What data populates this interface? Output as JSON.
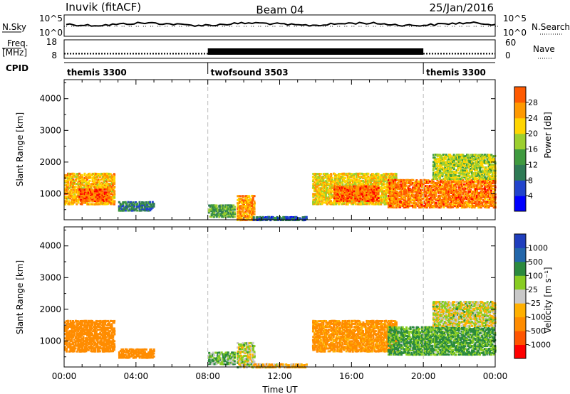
{
  "header": {
    "station": "Inuvik (fitACF)",
    "beam": "Beam 04",
    "date": "25/Jan/2016"
  },
  "nsky_panel": {
    "left_label": "N.Sky",
    "right_label": "N.Search",
    "left_ticks": [
      "10^5",
      "10^0"
    ],
    "right_ticks": [
      "10^5",
      "10^0"
    ]
  },
  "freq_panel": {
    "left_label_1": "Freq.",
    "left_label_2": "[MHz]",
    "right_label": "Nave",
    "left_ticks": [
      "18",
      "8"
    ],
    "right_ticks": [
      "60",
      "0"
    ],
    "freq_mhz_min": 8,
    "freq_mhz_max": 18,
    "freq_mhz_value": 10.5,
    "nave_min": 0,
    "nave_max": 60
  },
  "cpid": {
    "label": "CPID",
    "segments": [
      {
        "name": "themis 3300",
        "start": 0,
        "end": 8
      },
      {
        "name": "twofsound 3503",
        "start": 8,
        "end": 20
      },
      {
        "name": "themis 3300",
        "start": 20,
        "end": 24
      }
    ]
  },
  "colors": {
    "power_scale": [
      "#0000ff",
      "#2244cc",
      "#2e7a55",
      "#3f9a3f",
      "#9ccf2e",
      "#ffd500",
      "#ff9900",
      "#ff5a00",
      "#ff0000"
    ],
    "velocity_scale": [
      "#ff0000",
      "#ff5500",
      "#ff8c00",
      "#ffb000",
      "#c8c8c8",
      "#88cc22",
      "#2b8a3e",
      "#2266aa",
      "#1f3ebd"
    ]
  },
  "chart_data": [
    {
      "type": "heatmap",
      "name": "power",
      "xlabel": "",
      "ylabel": "Slant Range [km]",
      "x_range_hours": [
        0,
        24
      ],
      "ylim": [
        180,
        4600
      ],
      "yticks": [
        1000,
        2000,
        3000,
        4000
      ],
      "colorbar": {
        "label": "Power [dB]",
        "ticks": [
          "4",
          "8",
          "12",
          "16",
          "20",
          "24",
          "28"
        ],
        "min": 0,
        "max": 32
      },
      "mode_change_hours": [
        8,
        20
      ],
      "echo_regions": [
        {
          "t0": 0.0,
          "t1": 2.8,
          "r0": 700,
          "r1": 1700,
          "value": 24
        },
        {
          "t0": 0.8,
          "t1": 2.5,
          "r0": 800,
          "r1": 1200,
          "value": 30
        },
        {
          "t0": 3.0,
          "t1": 5.0,
          "r0": 500,
          "r1": 800,
          "value": 10
        },
        {
          "t0": 8.0,
          "t1": 9.5,
          "r0": 300,
          "r1": 700,
          "value": 14
        },
        {
          "t0": 9.6,
          "t1": 10.6,
          "r0": 200,
          "r1": 1000,
          "value": 26
        },
        {
          "t0": 10.5,
          "t1": 13.5,
          "r0": 200,
          "r1": 320,
          "value": 8
        },
        {
          "t0": 13.8,
          "t1": 18.5,
          "r0": 700,
          "r1": 1700,
          "value": 22
        },
        {
          "t0": 15.0,
          "t1": 17.5,
          "r0": 800,
          "r1": 1300,
          "value": 29
        },
        {
          "t0": 18.0,
          "t1": 24.0,
          "r0": 600,
          "r1": 1500,
          "value": 28
        },
        {
          "t0": 20.5,
          "t1": 24.0,
          "r0": 1500,
          "r1": 2300,
          "value": 19
        }
      ]
    },
    {
      "type": "heatmap",
      "name": "velocity",
      "xlabel": "Time UT",
      "ylabel": "Slant Range [km]",
      "x_range_hours": [
        0,
        24
      ],
      "xticks": [
        "00:00",
        "04:00",
        "08:00",
        "12:00",
        "16:00",
        "20:00",
        "00:00"
      ],
      "ylim": [
        180,
        4600
      ],
      "yticks": [
        1000,
        2000,
        3000,
        4000
      ],
      "colorbar": {
        "label": "Velocity [m s⁻¹]",
        "ticks": [
          "-1000",
          "-500",
          "-100",
          "-25",
          "25",
          "100",
          "500",
          "1000"
        ]
      },
      "mode_change_hours": [
        8,
        20
      ],
      "echo_regions": [
        {
          "t0": 0.0,
          "t1": 2.8,
          "r0": 700,
          "r1": 1700,
          "value": -300
        },
        {
          "t0": 3.0,
          "t1": 5.0,
          "r0": 500,
          "r1": 800,
          "value": -200
        },
        {
          "t0": 8.0,
          "t1": 9.5,
          "r0": 300,
          "r1": 700,
          "value": 80
        },
        {
          "t0": 9.6,
          "t1": 10.6,
          "r0": 200,
          "r1": 1000,
          "value": 15
        },
        {
          "t0": 10.5,
          "t1": 13.5,
          "r0": 200,
          "r1": 320,
          "value": -60
        },
        {
          "t0": 13.8,
          "t1": 18.5,
          "r0": 700,
          "r1": 1700,
          "value": -150
        },
        {
          "t0": 18.0,
          "t1": 24.0,
          "r0": 600,
          "r1": 1500,
          "value": 120
        },
        {
          "t0": 20.5,
          "t1": 24.0,
          "r0": 1500,
          "r1": 2300,
          "value": 10
        }
      ]
    }
  ]
}
